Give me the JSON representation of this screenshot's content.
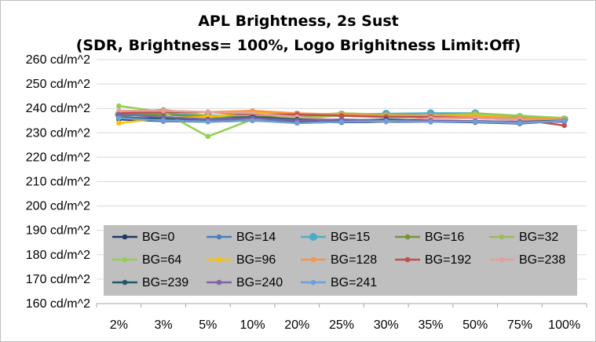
{
  "chart_data": {
    "type": "line",
    "title": "APL Brightness, 2s Sust",
    "subtitle": "(SDR, Brightness= 100%, Logo Brighitness Limit:Off)",
    "categories": [
      "2%",
      "3%",
      "5%",
      "10%",
      "20%",
      "25%",
      "30%",
      "35%",
      "50%",
      "75%",
      "100%"
    ],
    "y_ticks": [
      "160 cd/m^2",
      "170 cd/m^2",
      "180 cd/m^2",
      "190 cd/m^2",
      "200 cd/m^2",
      "210 cd/m^2",
      "220 cd/m^2",
      "230 cd/m^2",
      "240 cd/m^2",
      "250 cd/m^2",
      "260 cd/m^2"
    ],
    "ylim": [
      160,
      260
    ],
    "grid": true,
    "legend_position": "inside-bottom",
    "series": [
      {
        "name": "BG=0",
        "color": "#1f3864",
        "values": [
          235.5,
          234.8,
          234.5,
          235.0,
          234.5,
          234.3,
          234.5,
          234.5,
          234.3,
          233.8,
          235.0
        ]
      },
      {
        "name": "BG=14",
        "color": "#4a7ebb",
        "values": [
          236.5,
          235.5,
          234.8,
          235.5,
          234.0,
          234.5,
          234.8,
          234.5,
          234.5,
          234.0,
          235.3
        ]
      },
      {
        "name": "BG=15",
        "color": "#4bacc6",
        "values": [
          237.5,
          238.0,
          237.0,
          237.5,
          237.5,
          237.5,
          237.8,
          238.0,
          238.0,
          236.5,
          235.5
        ]
      },
      {
        "name": "BG=16",
        "color": "#77933c",
        "values": [
          237.0,
          237.5,
          236.5,
          236.5,
          236.8,
          237.5,
          237.0,
          236.5,
          237.0,
          236.5,
          235.5
        ]
      },
      {
        "name": "BG=32",
        "color": "#9bbb59",
        "values": [
          238.0,
          239.5,
          237.0,
          235.5,
          237.0,
          238.0,
          237.5,
          237.0,
          238.0,
          237.0,
          236.0
        ]
      },
      {
        "name": "BG=64",
        "color": "#92d050",
        "values": [
          241.0,
          238.5,
          228.5,
          235.5,
          236.0,
          237.0,
          236.5,
          236.5,
          237.5,
          237.0,
          236.0
        ]
      },
      {
        "name": "BG=96",
        "color": "#ffc000",
        "values": [
          234.0,
          236.0,
          236.5,
          238.5,
          237.5,
          237.5,
          237.0,
          237.0,
          237.0,
          236.0,
          235.5
        ]
      },
      {
        "name": "BG=128",
        "color": "#f79646",
        "values": [
          238.5,
          239.0,
          238.5,
          239.0,
          238.0,
          237.5,
          237.0,
          237.0,
          236.5,
          236.0,
          235.5
        ]
      },
      {
        "name": "BG=192",
        "color": "#c0504d",
        "values": [
          238.0,
          238.5,
          238.5,
          237.5,
          237.5,
          237.0,
          236.5,
          236.5,
          236.0,
          235.5,
          233.0
        ]
      },
      {
        "name": "BG=238",
        "color": "#e6a09a",
        "values": [
          239.0,
          239.0,
          238.5,
          238.0,
          236.5,
          235.0,
          234.5,
          236.0,
          236.0,
          235.5,
          234.5
        ]
      },
      {
        "name": "BG=239",
        "color": "#215968",
        "values": [
          236.0,
          236.0,
          235.5,
          236.5,
          235.5,
          235.0,
          235.5,
          235.0,
          234.8,
          234.5,
          235.0
        ]
      },
      {
        "name": "BG=240",
        "color": "#8064a2",
        "values": [
          237.5,
          236.5,
          235.5,
          236.0,
          235.0,
          235.5,
          235.0,
          235.0,
          234.8,
          234.5,
          234.5
        ]
      },
      {
        "name": "BG=241",
        "color": "#6f9fd8",
        "values": [
          236.0,
          235.0,
          234.5,
          235.0,
          234.0,
          234.5,
          234.8,
          234.5,
          234.5,
          234.0,
          235.0
        ]
      }
    ]
  }
}
